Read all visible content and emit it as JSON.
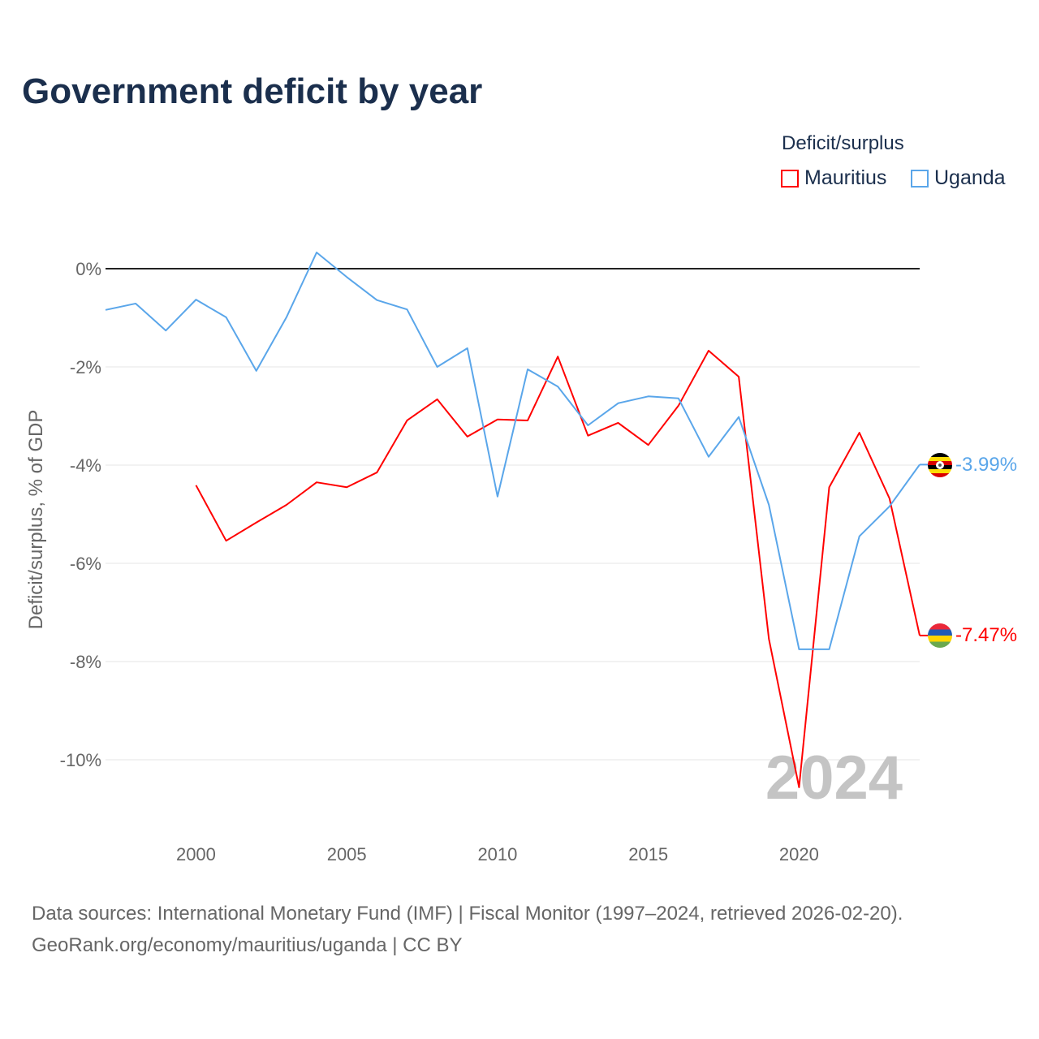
{
  "title": "Government deficit by year",
  "legend": {
    "title": "Deficit/surplus",
    "items": [
      {
        "label": "Mauritius",
        "color": "#ff0000"
      },
      {
        "label": "Uganda",
        "color": "#5aa6ea"
      }
    ]
  },
  "footer": {
    "line1": "Data sources: International Monetary Fund (IMF) | Fiscal Monitor (1997–2024, retrieved 2026-02-20).",
    "line2": "GeoRank.org/economy/mauritius/uganda | CC BY"
  },
  "watermark_year": "2024",
  "chart_data": {
    "type": "line",
    "title": "Government deficit by year",
    "xlabel": "",
    "ylabel": "Deficit/surplus, % of GDP",
    "xlim": [
      1997,
      2024
    ],
    "ylim": [
      -11.5,
      1.0
    ],
    "x_ticks": [
      2000,
      2005,
      2010,
      2015,
      2020
    ],
    "y_ticks": [
      0,
      -2,
      -4,
      -6,
      -8,
      -10
    ],
    "y_tick_labels": [
      "0%",
      "-2%",
      "-4%",
      "-6%",
      "-8%",
      "-10%"
    ],
    "grid": true,
    "legend_position": "top-right",
    "series": [
      {
        "name": "Mauritius",
        "color": "#ff0000",
        "end_label": "-7.47%",
        "x": [
          2000,
          2001,
          2002,
          2003,
          2004,
          2005,
          2006,
          2007,
          2008,
          2009,
          2010,
          2011,
          2012,
          2013,
          2014,
          2015,
          2016,
          2017,
          2018,
          2019,
          2020,
          2021,
          2022,
          2023,
          2024
        ],
        "values": [
          -4.41,
          -5.54,
          -5.17,
          -4.81,
          -4.35,
          -4.45,
          -4.15,
          -3.09,
          -2.66,
          -3.42,
          -3.07,
          -3.09,
          -1.79,
          -3.4,
          -3.14,
          -3.59,
          -2.79,
          -1.67,
          -2.2,
          -7.54,
          -10.56,
          -4.45,
          -3.34,
          -4.68,
          -7.47
        ]
      },
      {
        "name": "Uganda",
        "color": "#5aa6ea",
        "end_label": "-3.99%",
        "x": [
          1997,
          1998,
          1999,
          2000,
          2001,
          2002,
          2003,
          2004,
          2005,
          2006,
          2007,
          2008,
          2009,
          2010,
          2011,
          2012,
          2013,
          2014,
          2015,
          2016,
          2017,
          2018,
          2019,
          2020,
          2021,
          2022,
          2023,
          2024
        ],
        "values": [
          -0.84,
          -0.71,
          -1.26,
          -0.63,
          -0.99,
          -2.08,
          -0.99,
          0.33,
          -0.17,
          -0.64,
          -0.83,
          -2.0,
          -1.62,
          -4.64,
          -2.05,
          -2.4,
          -3.19,
          -2.74,
          -2.6,
          -2.64,
          -3.83,
          -3.02,
          -4.81,
          -7.75,
          -7.75,
          -5.45,
          -4.84,
          -3.99
        ]
      }
    ]
  }
}
